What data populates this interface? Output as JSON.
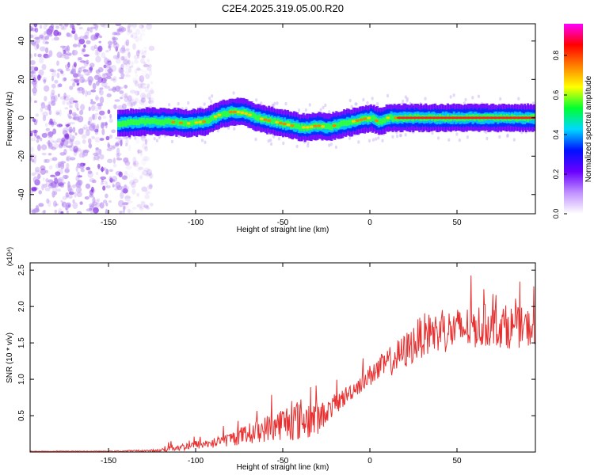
{
  "title": "C2E4.2025.319.05.00.R20",
  "chart_data": [
    {
      "type": "heatmap",
      "xlabel": "Height of straight line (km)",
      "ylabel": "Frequency (Hz)",
      "xlim": [
        -195,
        95
      ],
      "ylim": [
        -50,
        49
      ],
      "xticks": [
        -150,
        -100,
        -50,
        0,
        50
      ],
      "yticks": [
        -40,
        -20,
        0,
        20,
        40
      ],
      "colorbar": {
        "label": "Normalized spectral amplitude",
        "range": [
          0,
          0.96
        ],
        "ticks": [
          "0.0",
          "0.2",
          "0.4",
          "0.6",
          "0.8"
        ],
        "colors": [
          "#ffffff",
          "#c090ff",
          "#6a00ff",
          "#0010ff",
          "#00d8ff",
          "#00ff30",
          "#ffff00",
          "#ff8000",
          "#ff0000",
          "#ff00ff"
        ]
      },
      "ridge": {
        "x": [
          -145,
          -130,
          -115,
          -105,
          -95,
          -90,
          -85,
          -80,
          -75,
          -70,
          -65,
          -60,
          -55,
          -50,
          -45,
          -40,
          -35,
          -30,
          -25,
          -20,
          -15,
          -10,
          -5,
          0,
          5,
          10,
          20,
          40,
          60,
          80,
          95
        ],
        "y": [
          -3,
          -2,
          -2,
          -3,
          -2,
          0,
          2,
          3,
          3,
          2,
          0,
          -1,
          -2,
          -3,
          -4,
          -5,
          -5,
          -4,
          -5,
          -4,
          -3,
          -2,
          -1,
          0,
          -2,
          0,
          0,
          0,
          0,
          0,
          0
        ]
      },
      "noise_region": [
        -195,
        -140
      ]
    },
    {
      "type": "line",
      "xlabel": "Height of straight line (km)",
      "ylabel": "SNR (10 * v/v)",
      "multiplier": "(x10⁴)",
      "xlim": [
        -195,
        95
      ],
      "ylim": [
        0,
        2.6
      ],
      "xticks": [
        -150,
        -100,
        -50,
        0,
        50
      ],
      "yticks": [
        0.5,
        1.0,
        1.5,
        2.0,
        2.5
      ],
      "color": "#e83030",
      "envelope": {
        "x": [
          -195,
          -150,
          -120,
          -115,
          -110,
          -100,
          -90,
          -80,
          -70,
          -60,
          -50,
          -40,
          -30,
          -25,
          -20,
          -10,
          0,
          10,
          20,
          30,
          40,
          50,
          60,
          70,
          80,
          95
        ],
        "mean": [
          0.01,
          0.01,
          0.02,
          0.08,
          0.06,
          0.1,
          0.12,
          0.18,
          0.25,
          0.32,
          0.4,
          0.45,
          0.45,
          0.55,
          0.65,
          0.85,
          1.05,
          1.22,
          1.38,
          1.6,
          1.65,
          1.68,
          1.72,
          1.75,
          1.72,
          1.7
        ],
        "spread": [
          0.003,
          0.005,
          0.02,
          0.08,
          0.05,
          0.06,
          0.07,
          0.1,
          0.14,
          0.18,
          0.24,
          0.3,
          0.25,
          0.14,
          0.15,
          0.12,
          0.15,
          0.2,
          0.25,
          0.3,
          0.3,
          0.3,
          0.3,
          0.3,
          0.3,
          0.25
        ]
      }
    }
  ]
}
